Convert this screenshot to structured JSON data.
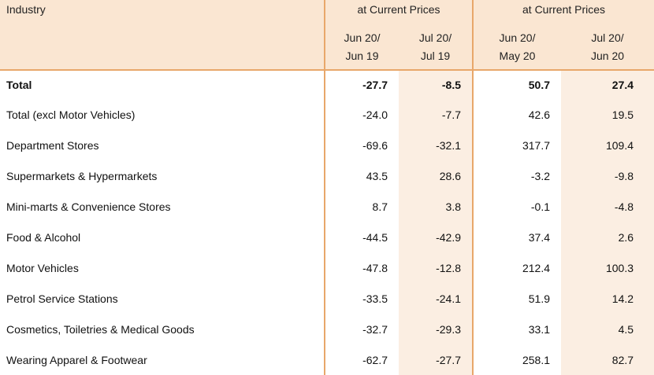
{
  "header": {
    "industry": "Industry",
    "group1": "at Current Prices",
    "group2": "at Current Prices",
    "cols": [
      {
        "line1": "Jun 20/",
        "line2": "Jun 19"
      },
      {
        "line1": "Jul 20/",
        "line2": "Jul 19"
      },
      {
        "line1": "Jun 20/",
        "line2": "May 20"
      },
      {
        "line1": "Jul 20/",
        "line2": "Jun 20"
      }
    ]
  },
  "rows": [
    {
      "industry": "Total",
      "v1": "-27.7",
      "v2": "-8.5",
      "v3": "50.7",
      "v4": "27.4"
    },
    {
      "industry": "Total (excl Motor Vehicles)",
      "v1": "-24.0",
      "v2": "-7.7",
      "v3": "42.6",
      "v4": "19.5"
    },
    {
      "industry": "Department Stores",
      "v1": "-69.6",
      "v2": "-32.1",
      "v3": "317.7",
      "v4": "109.4"
    },
    {
      "industry": "Supermarkets & Hypermarkets",
      "v1": "43.5",
      "v2": "28.6",
      "v3": "-3.2",
      "v4": "-9.8"
    },
    {
      "industry": "Mini-marts & Convenience Stores",
      "v1": "8.7",
      "v2": "3.8",
      "v3": "-0.1",
      "v4": "-4.8"
    },
    {
      "industry": "Food & Alcohol",
      "v1": "-44.5",
      "v2": "-42.9",
      "v3": "37.4",
      "v4": "2.6"
    },
    {
      "industry": "Motor Vehicles",
      "v1": "-47.8",
      "v2": "-12.8",
      "v3": "212.4",
      "v4": "100.3"
    },
    {
      "industry": "Petrol Service Stations",
      "v1": "-33.5",
      "v2": "-24.1",
      "v3": "51.9",
      "v4": "14.2"
    },
    {
      "industry": "Cosmetics, Toiletries & Medical Goods",
      "v1": "-32.7",
      "v2": "-29.3",
      "v3": "33.1",
      "v4": "4.5"
    },
    {
      "industry": "Wearing Apparel & Footwear",
      "v1": "-62.7",
      "v2": "-27.7",
      "v3": "258.1",
      "v4": "82.7"
    }
  ],
  "colors": {
    "header_bg": "#fae6d2",
    "shade_bg": "#fbeee2",
    "rule": "#e8a76a"
  }
}
